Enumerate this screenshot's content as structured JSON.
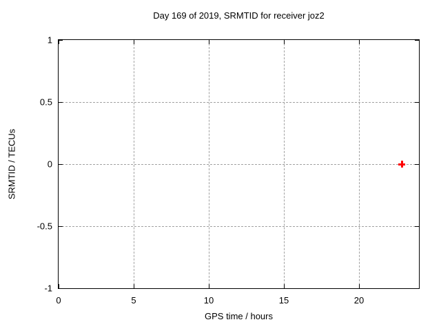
{
  "chart": {
    "title": "Day 169 of 2019, SRMTID for receiver joz2",
    "xlabel": "GPS time / hours",
    "ylabel": "SRMTID / TECUs"
  },
  "chart_data": {
    "type": "scatter",
    "title": "Day 169 of 2019, SRMTID for receiver joz2",
    "xlabel": "GPS time / hours",
    "ylabel": "SRMTID / TECUs",
    "xlim": [
      0,
      24
    ],
    "ylim": [
      -1,
      1
    ],
    "xticks": [
      {
        "value": 0,
        "label": "0"
      },
      {
        "value": 5,
        "label": "5"
      },
      {
        "value": 10,
        "label": "10"
      },
      {
        "value": 15,
        "label": "15"
      },
      {
        "value": 20,
        "label": "20"
      }
    ],
    "yticks": [
      {
        "value": 1,
        "label": "1"
      },
      {
        "value": 0.5,
        "label": "0.5"
      },
      {
        "value": 0,
        "label": "0"
      },
      {
        "value": -0.5,
        "label": "-0.5"
      },
      {
        "value": -1,
        "label": "-1"
      }
    ],
    "grid": true,
    "grid_style": "dashed",
    "legend": "none",
    "series": [
      {
        "name": "SRMTID",
        "marker": "plus",
        "color": "#ff0000",
        "points": [
          {
            "x": 22.85,
            "y": 0.0
          }
        ]
      }
    ]
  },
  "colors": {
    "background": "#ffffff",
    "frame": "#000000",
    "grid": "#a0a0a0",
    "text": "#000000",
    "marker": "#ff0000"
  }
}
